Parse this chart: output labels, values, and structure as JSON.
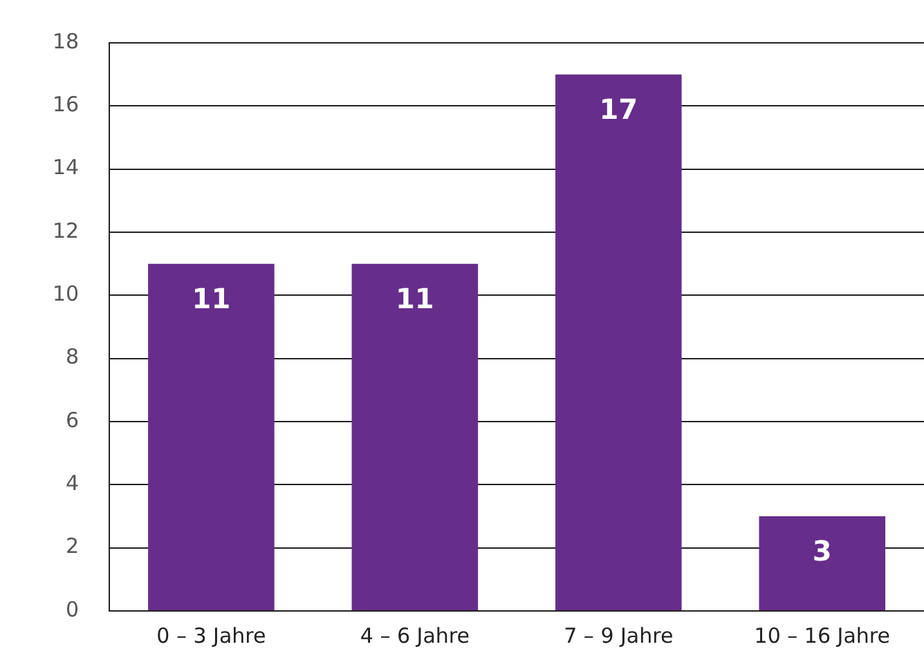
{
  "chart_data": {
    "type": "bar",
    "categories": [
      "0 – 3 Jahre",
      "4 – 6 Jahre",
      "7 – 9 Jahre",
      "10 – 16 Jahre"
    ],
    "values": [
      11,
      11,
      17,
      3
    ],
    "color": "#662d8b",
    "ylim": [
      0,
      18
    ],
    "yticks": [
      0,
      2,
      4,
      6,
      8,
      10,
      12,
      14,
      16,
      18
    ],
    "grid": "y",
    "data_labels": true
  }
}
